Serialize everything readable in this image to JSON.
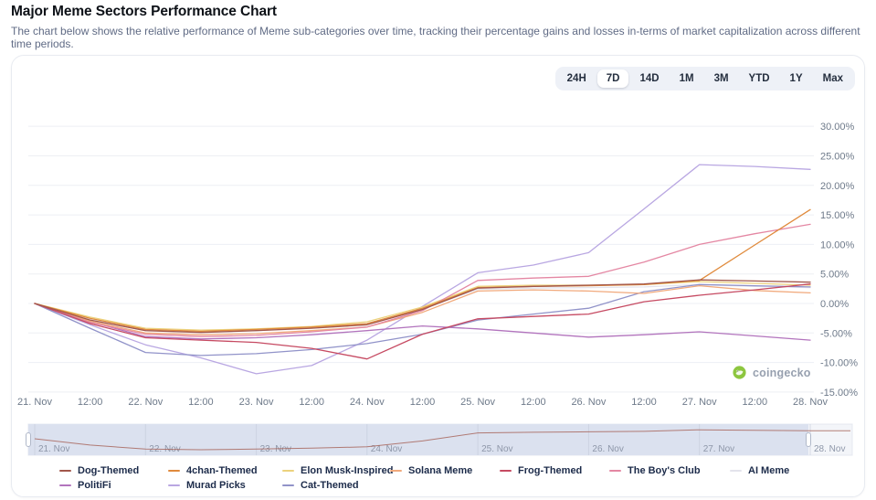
{
  "header": {
    "title": "Major Meme Sectors Performance Chart",
    "subtitle": "The chart below shows the relative performance of Meme sub-categories over time, tracking their percentage gains and losses in-terms of market capitalization across different time periods."
  },
  "time_range_buttons": {
    "options": [
      "24H",
      "7D",
      "14D",
      "1M",
      "3M",
      "YTD",
      "1Y",
      "Max"
    ],
    "selected": "7D"
  },
  "watermark": {
    "label": "coingecko",
    "icon_color": "#8dc63f"
  },
  "chart_data": {
    "type": "line",
    "title": "Major Meme Sectors Performance Chart",
    "unit": "%",
    "y_axis_side": "right",
    "grid": true,
    "legend_position": "bottom",
    "ylim": [
      -15,
      30
    ],
    "y_tick_labels": [
      "30.00%",
      "25.00%",
      "20.00%",
      "15.00%",
      "10.00%",
      "5.00%",
      "0.00%",
      "-5.00%",
      "-10.00%",
      "-15.00%"
    ],
    "y_tick_values": [
      30,
      25,
      20,
      15,
      10,
      5,
      0,
      -5,
      -10,
      -15
    ],
    "x_labels": [
      "21. Nov",
      "12:00",
      "22. Nov",
      "12:00",
      "23. Nov",
      "12:00",
      "24. Nov",
      "12:00",
      "25. Nov",
      "12:00",
      "26. Nov",
      "12:00",
      "27. Nov",
      "12:00",
      "28. Nov"
    ],
    "series": [
      {
        "name": "Dog-Themed",
        "color": "#a2574b",
        "values": [
          0,
          -2.8,
          -4.6,
          -4.9,
          -4.6,
          -4.2,
          -3.6,
          -1.0,
          2.6,
          2.9,
          3.1,
          3.3,
          4.0,
          3.8,
          3.6
        ]
      },
      {
        "name": "4chan-Themed",
        "color": "#e08a3c",
        "values": [
          0,
          -2.5,
          -4.4,
          -4.7,
          -4.4,
          -4.0,
          -3.4,
          -0.8,
          2.7,
          2.9,
          3.0,
          3.2,
          3.9,
          9.9,
          15.9
        ]
      },
      {
        "name": "Elon Musk-Inspired",
        "color": "#ecd27d",
        "values": [
          0,
          -2.3,
          -4.2,
          -4.5,
          -4.3,
          -3.9,
          -3.1,
          -0.6,
          2.9,
          3.1,
          3.1,
          3.2,
          3.7,
          3.4,
          3.1
        ]
      },
      {
        "name": "Solana Meme",
        "color": "#f1a97c",
        "values": [
          0,
          -3.0,
          -5.0,
          -5.3,
          -5.1,
          -4.6,
          -4.0,
          -1.5,
          2.1,
          2.3,
          2.1,
          1.7,
          3.0,
          2.2,
          1.8
        ]
      },
      {
        "name": "Frog-Themed",
        "color": "#c64a62",
        "values": [
          0,
          -3.4,
          -5.8,
          -6.2,
          -6.6,
          -7.6,
          -9.4,
          -5.2,
          -2.6,
          -2.2,
          -1.8,
          0.3,
          1.4,
          2.3,
          3.3
        ]
      },
      {
        "name": "The Boy's Club",
        "color": "#e487a3",
        "values": [
          0,
          -3.2,
          -5.2,
          -5.6,
          -5.4,
          -4.8,
          -4.0,
          -1.2,
          3.9,
          4.3,
          4.6,
          7.0,
          10.0,
          11.8,
          13.4
        ]
      },
      {
        "name": "AI Meme",
        "color": "#e3e3ec",
        "values": [
          0,
          -2.6,
          -4.5,
          -4.8,
          -4.6,
          -4.1,
          -3.4,
          -0.9,
          2.4,
          2.6,
          2.7,
          2.8,
          3.2,
          2.9,
          2.7
        ]
      },
      {
        "name": "PolitiFi",
        "color": "#b274bd",
        "values": [
          0,
          -3.1,
          -5.6,
          -6.0,
          -5.8,
          -5.3,
          -4.6,
          -3.8,
          -4.3,
          -5.0,
          -5.7,
          -5.3,
          -4.8,
          -5.5,
          -6.2
        ]
      },
      {
        "name": "Murad Picks",
        "color": "#b9a7e2",
        "values": [
          0,
          -3.6,
          -7.0,
          -9.2,
          -11.9,
          -10.5,
          -6.2,
          -0.5,
          5.2,
          6.5,
          8.6,
          16.0,
          23.5,
          23.2,
          22.7
        ]
      },
      {
        "name": "Cat-Themed",
        "color": "#9193c9",
        "values": [
          0,
          -4.2,
          -8.3,
          -8.8,
          -8.5,
          -7.8,
          -6.8,
          -5.2,
          -2.8,
          -1.8,
          -0.8,
          2.0,
          3.2,
          3.0,
          2.8
        ]
      }
    ],
    "navigator": {
      "date_labels": [
        "21. Nov",
        "22. Nov",
        "23. Nov",
        "24. Nov",
        "25. Nov",
        "26. Nov",
        "27. Nov",
        "28. Nov"
      ],
      "series_shown": "Dog-Themed",
      "selection": "21. Nov to 28. Nov"
    }
  }
}
